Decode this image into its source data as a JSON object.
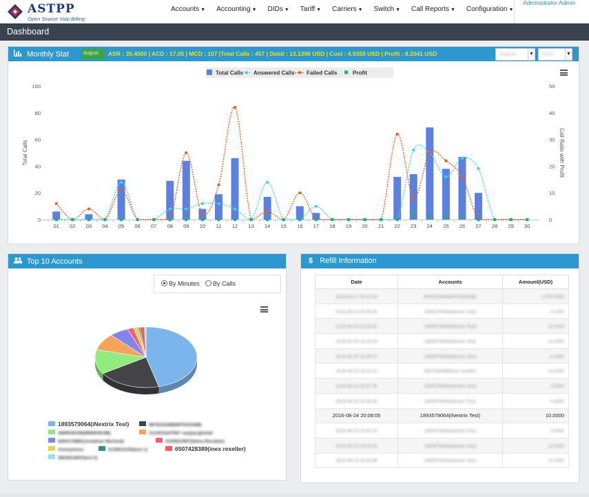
{
  "app": {
    "logo_name": "ASTPP",
    "logo_sub": "Open Source Voip Billing",
    "user": "Administrator Admin"
  },
  "nav": [
    "Accounts",
    "Accounting",
    "DIDs",
    "Tariff",
    "Carriers",
    "Switch",
    "Call Reports",
    "Configuration"
  ],
  "page_title": "Dashboard",
  "monthly": {
    "title": "Monthly Stat",
    "month_select": "August",
    "year_select": "2016",
    "stats": "ASR : 35.4500 | ACD : 17.05 | MCD : 107 |Total Calls : 457 | Debit : 13.1396 USD | Cost : 4.9355 USD | Profit : 8.2041 USD"
  },
  "accounts_panel": {
    "title": "Top 10 Accounts",
    "radio_minutes": "By Minutes",
    "radio_calls": "By Calls",
    "legend": [
      {
        "label": "1893579064(iNextrix Test)",
        "color": "#7cb5ec",
        "blurred": false
      },
      {
        "label": "9878181688(9878181688)",
        "color": "#434348",
        "blurred": true
      },
      {
        "label": "2869036198(9869036198)",
        "color": "#90ed7d",
        "blurred": true
      },
      {
        "label": "1113031647567 sanjayvghelaif",
        "color": "#f7a35c",
        "blurred": true
      },
      {
        "label": "8293175882(Jonathan Mertinal)",
        "color": "#8085e9",
        "blurred": true
      },
      {
        "label": "5193821997(Selva Recallao)",
        "color": "#f15c80",
        "blurred": true
      },
      {
        "label": "Anonymous",
        "color": "#e4d354",
        "blurred": true
      },
      {
        "label": "6129031193(test 1)",
        "color": "#2b908f",
        "blurred": true
      },
      {
        "label": "6507428389(inex reseller)",
        "color": "#f45b5b",
        "blurred": false
      },
      {
        "label": "5803914597(test 2)",
        "color": "#91e8e1",
        "blurred": true
      }
    ]
  },
  "refill": {
    "title": "Refill Information",
    "columns": [
      "Date",
      "Accounts",
      "Amount(USD)"
    ],
    "rows": [
      {
        "date": "2016-08-27 08:12:09",
        "account": "9878181688(9878181688)",
        "amount": "1,000.0000",
        "blurred": true
      },
      {
        "date": "2016-08-24 09:29:05",
        "account": "1893579064(iNextrix Test)",
        "amount": "0.1000",
        "blurred": true
      },
      {
        "date": "2016-08-25 16:28:52",
        "account": "1893579064(iNextrix Test)",
        "amount": "10.0000",
        "blurred": true
      },
      {
        "date": "2016-08-25 16:28:44",
        "account": "1893579064(iNextrix Test)",
        "amount": "-10.0000",
        "blurred": true
      },
      {
        "date": "2016-08-25 16:28:27",
        "account": "1893579064(iNextrix Test)",
        "amount": "-0.0000",
        "blurred": true
      },
      {
        "date": "2016-08-25 10:13:21",
        "account": "6507428389(inex reseller)",
        "amount": "-10.0000",
        "blurred": true
      },
      {
        "date": "2016-08-24 20:47:35",
        "account": "1893579064(iNextrix Test)",
        "amount": "5.0000",
        "blurred": true
      },
      {
        "date": "2016-08-24 20:46:23",
        "account": "1893579064(iNextrix Test)",
        "amount": "-0.0000",
        "blurred": true
      },
      {
        "date": "2016-08-24 20:08:05",
        "account": "1893579064(iNextrix Test)",
        "amount": "10.0000",
        "blurred": false
      },
      {
        "date": "2016-08-24 19:05:10",
        "account": "1893579064(iNextrix Test)",
        "amount": "0.0000",
        "blurred": true
      },
      {
        "date": "2016-08-24 19:04:59",
        "account": "1893579064(iNextrix Test)",
        "amount": "10.0000",
        "blurred": true
      },
      {
        "date": "2016-08-24 18:34:46",
        "account": "1893579064(iNextrix Test)",
        "amount": "10.0000",
        "blurred": true
      }
    ]
  },
  "colors": {
    "accent": "#2d98d0",
    "titlebar": "#39424e",
    "bars": "#5b80e0",
    "answered": "#3fd3e8",
    "failed": "#ee5a1c",
    "profit": "#20b07a"
  },
  "chart_data": [
    {
      "type": "bar",
      "title": "",
      "ylabel": "Total Calls",
      "y2label": "Call Ratio with Profit",
      "ylim": [
        0,
        100
      ],
      "y2lim": [
        0,
        50
      ],
      "yticks": [
        0,
        20,
        40,
        60,
        80,
        100
      ],
      "y2ticks": [
        0,
        10,
        20,
        30,
        40,
        50
      ],
      "legend_position": "top-center",
      "categories": [
        "01",
        "02",
        "03",
        "04",
        "05",
        "06",
        "07",
        "08",
        "09",
        "10",
        "11",
        "12",
        "13",
        "14",
        "15",
        "16",
        "17",
        "18",
        "19",
        "20",
        "21",
        "22",
        "23",
        "24",
        "25",
        "26",
        "27",
        "28",
        "29",
        "30"
      ],
      "series": [
        {
          "name": "Total Calls",
          "axis": "left",
          "style": "bar",
          "values": [
            6,
            0,
            4,
            0,
            30,
            0,
            0,
            29,
            44,
            8,
            19,
            46,
            0,
            17,
            0,
            10,
            5,
            0,
            0,
            0,
            0,
            32,
            34,
            69,
            38,
            47,
            20,
            0,
            0,
            0
          ]
        },
        {
          "name": "Answered Calls",
          "axis": "right",
          "style": "spline",
          "values": [
            0,
            0,
            0,
            0,
            14,
            0,
            0,
            4,
            4,
            6,
            6,
            4,
            0,
            14,
            0,
            0,
            5,
            0,
            0,
            0,
            0,
            0,
            26,
            25,
            16,
            23,
            19,
            0,
            0,
            0
          ]
        },
        {
          "name": "Failed Calls",
          "axis": "right",
          "style": "spline",
          "values": [
            6,
            0,
            4,
            0,
            11,
            0,
            0,
            0,
            25,
            2,
            13,
            42,
            0,
            3,
            0,
            10,
            0,
            0,
            0,
            0,
            0,
            32,
            8,
            25,
            22,
            16,
            0,
            0,
            0,
            0
          ]
        },
        {
          "name": "Profit",
          "axis": "right",
          "style": "point",
          "values": [
            0,
            0,
            0,
            0,
            0,
            0,
            0,
            0,
            0,
            0,
            0,
            0,
            0,
            0,
            0,
            0,
            0,
            0,
            0,
            0,
            0,
            0,
            2,
            1,
            1,
            1,
            0,
            0,
            0,
            0
          ]
        }
      ]
    },
    {
      "type": "pie",
      "categories": [
        "1893579064(iNextrix Test)",
        "9878181688(9878181688)",
        "2869036198(9869036198)",
        "1113031647567 sanjayvghelaif",
        "8293175882(Jonathan Mertinal)",
        "5193821997(Selva Recallao)",
        "Anonymous",
        "6129031193(test 1)",
        "6507428389(inex reseller)",
        "5803914597(test 2)"
      ],
      "values": [
        46,
        20,
        13,
        9,
        6,
        2,
        1.5,
        0.5,
        1.5,
        0.5
      ],
      "colors": [
        "#7cb5ec",
        "#434348",
        "#90ed7d",
        "#f7a35c",
        "#8085e9",
        "#f15c80",
        "#e4d354",
        "#2b908f",
        "#f45b5b",
        "#91e8e1"
      ]
    }
  ]
}
